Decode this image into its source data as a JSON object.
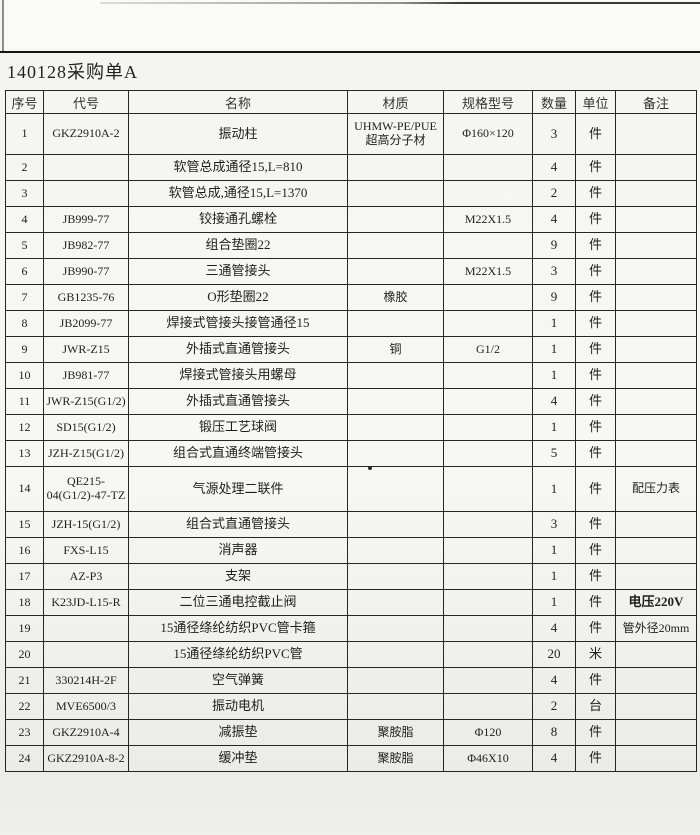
{
  "page": {
    "title": "140128采购单A"
  },
  "table": {
    "headers": [
      "序号",
      "代号",
      "名称",
      "材质",
      "规格型号",
      "数量",
      "单位",
      "备注"
    ],
    "rows": [
      [
        "1",
        "GKZ2910A-2",
        "振动柱",
        "UHMW-PE/PUE 超高分子材",
        "Φ160×120",
        "3",
        "件",
        ""
      ],
      [
        "2",
        "",
        "软管总成通径15,L=810",
        "",
        "",
        "4",
        "件",
        ""
      ],
      [
        "3",
        "",
        "软管总成,通径15,L=1370",
        "",
        "",
        "2",
        "件",
        ""
      ],
      [
        "4",
        "JB999-77",
        "铰接通孔螺栓",
        "",
        "M22X1.5",
        "4",
        "件",
        ""
      ],
      [
        "5",
        "JB982-77",
        "组合垫圈22",
        "",
        "",
        "9",
        "件",
        ""
      ],
      [
        "6",
        "JB990-77",
        "三通管接头",
        "",
        "M22X1.5",
        "3",
        "件",
        ""
      ],
      [
        "7",
        "GB1235-76",
        "O形垫圈22",
        "橡胶",
        "",
        "9",
        "件",
        ""
      ],
      [
        "8",
        "JB2099-77",
        "焊接式管接头接管通径15",
        "",
        "",
        "1",
        "件",
        ""
      ],
      [
        "9",
        "JWR-Z15",
        "外插式直通管接头",
        "铜",
        "G1/2",
        "1",
        "件",
        ""
      ],
      [
        "10",
        "JB981-77",
        "焊接式管接头用螺母",
        "",
        "",
        "1",
        "件",
        ""
      ],
      [
        "11",
        "JWR-Z15(G1/2)",
        "外插式直通管接头",
        "",
        "",
        "4",
        "件",
        ""
      ],
      [
        "12",
        "SD15(G1/2)",
        "锻压工艺球阀",
        "",
        "",
        "1",
        "件",
        ""
      ],
      [
        "13",
        "JZH-Z15(G1/2)",
        "组合式直通终端管接头",
        "",
        "",
        "5",
        "件",
        ""
      ],
      [
        "14",
        "QE215-04(G1/2)-47-TZ",
        "气源处理二联件",
        "",
        "",
        "1",
        "件",
        "配压力表"
      ],
      [
        "15",
        "JZH-15(G1/2)",
        "组合式直通管接头",
        "",
        "",
        "3",
        "件",
        ""
      ],
      [
        "16",
        "FXS-L15",
        "消声器",
        "",
        "",
        "1",
        "件",
        ""
      ],
      [
        "17",
        "AZ-P3",
        "支架",
        "",
        "",
        "1",
        "件",
        ""
      ],
      [
        "18",
        "K23JD-L15-R",
        "二位三通电控截止阀",
        "",
        "",
        "1",
        "件",
        "电压220V"
      ],
      [
        "19",
        "",
        "15通径绦纶纺织PVC管卡箍",
        "",
        "",
        "4",
        "件",
        "管外径20mm"
      ],
      [
        "20",
        "",
        "15通径绦纶纺织PVC管",
        "",
        "",
        "20",
        "米",
        ""
      ],
      [
        "21",
        "330214H-2F",
        "空气弹簧",
        "",
        "",
        "4",
        "件",
        ""
      ],
      [
        "22",
        "MVE6500/3",
        "振动电机",
        "",
        "",
        "2",
        "台",
        ""
      ],
      [
        "23",
        "GKZ2910A-4",
        "减振垫",
        "聚胺脂",
        "Φ120",
        "8",
        "件",
        ""
      ],
      [
        "24",
        "GKZ2910A-8-2",
        "缓冲垫",
        "聚胺脂",
        "Φ46X10",
        "4",
        "件",
        ""
      ]
    ]
  }
}
